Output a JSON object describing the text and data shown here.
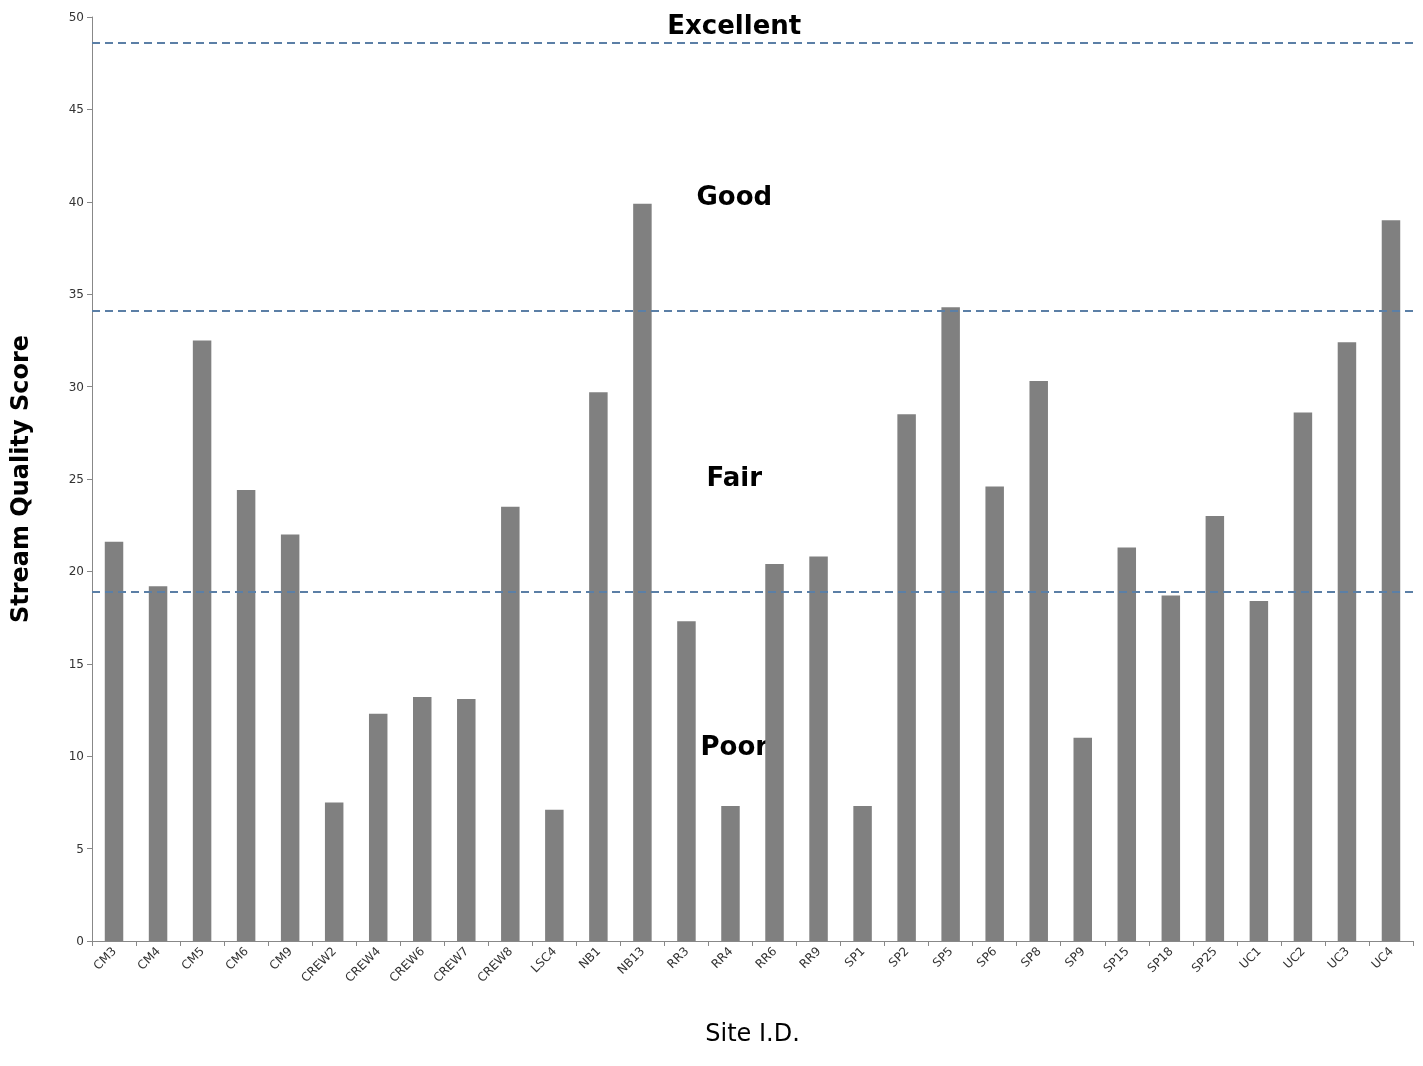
{
  "chart_data": {
    "type": "bar",
    "xlabel": "Site I.D.",
    "ylabel": "Stream Quality Score",
    "categories": [
      "CM3",
      "CM4",
      "CM5",
      "CM6",
      "CM9",
      "CREW2",
      "CREW4",
      "CREW6",
      "CREW7",
      "CREW8",
      "LSC4",
      "NB1",
      "NB13",
      "RR3",
      "RR4",
      "RR6",
      "RR9",
      "SP1",
      "SP2",
      "SP5",
      "SP6",
      "SP8",
      "SP9",
      "SP15",
      "SP18",
      "SP25",
      "UC1",
      "UC2",
      "UC3",
      "UC4"
    ],
    "values": [
      21.6,
      19.2,
      32.5,
      24.4,
      22.0,
      7.5,
      12.3,
      13.2,
      13.1,
      23.5,
      7.1,
      29.7,
      39.9,
      17.3,
      7.3,
      20.4,
      20.8,
      7.3,
      28.5,
      34.3,
      24.6,
      30.3,
      11.0,
      21.3,
      18.7,
      23.0,
      18.4,
      28.6,
      32.4,
      39.0
    ],
    "color": "#808080",
    "ylim": [
      0,
      50
    ],
    "yticks": [
      0,
      5,
      10,
      15,
      20,
      25,
      30,
      35,
      40,
      45,
      50
    ],
    "ref_lines": [
      {
        "axis": "y",
        "value": 48.6,
        "color": "#5b7fa6",
        "line_style": "dashed"
      },
      {
        "axis": "y",
        "value": 34.1,
        "color": "#5b7fa6",
        "line_style": "dashed"
      },
      {
        "axis": "y",
        "value": 18.9,
        "color": "#5b7fa6",
        "line_style": "dashed"
      }
    ],
    "annotations": [
      "Excellent",
      "Good",
      "Fair",
      "Poor"
    ],
    "grid": false
  }
}
